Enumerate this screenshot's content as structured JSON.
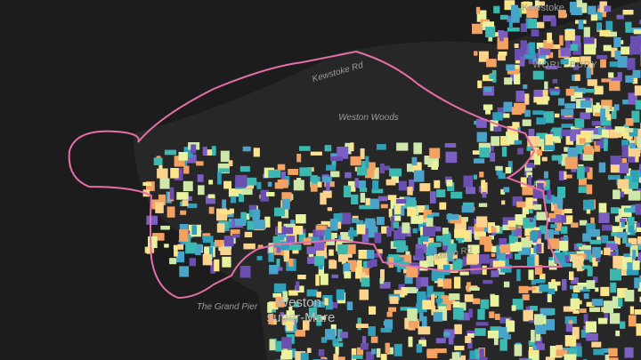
{
  "labels": {
    "kewstoke": "Kewstoke",
    "kewstoke_rd": "Kewstoke Rd",
    "weston_woods": "Weston Woods",
    "worlebury": "WORLEBURY",
    "milton_rd": "Milton Rd",
    "grand_pier": "The Grand Pier",
    "town_line1": "Weston-",
    "town_line2": "super-Mare"
  }
}
